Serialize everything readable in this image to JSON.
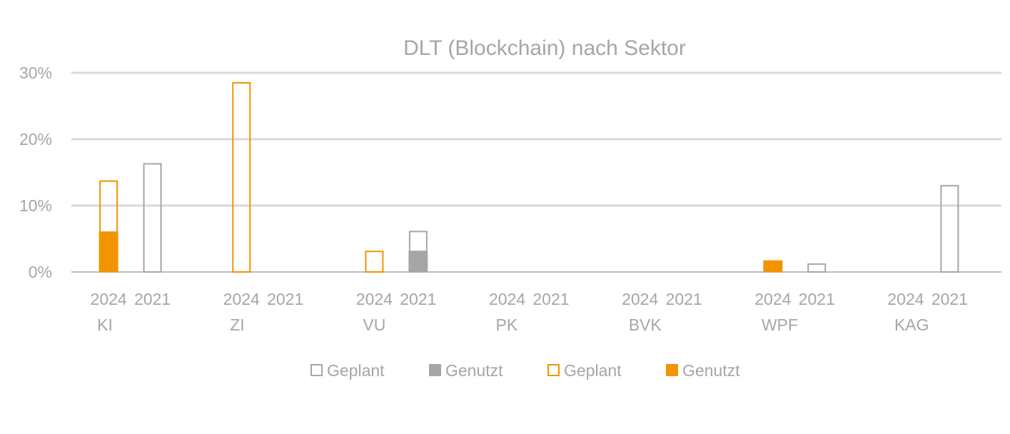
{
  "chart_data": {
    "type": "bar",
    "title": "DLT (Blockchain) nach Sektor",
    "xlabel": "",
    "ylabel": "",
    "ylim": [
      0,
      30
    ],
    "yticks": [
      "0%",
      "10%",
      "20%",
      "30%"
    ],
    "grid": true,
    "legend_position": "bottom",
    "categories": [
      "KI",
      "ZI",
      "VU",
      "PK",
      "BVK",
      "WPF",
      "KAG"
    ],
    "years": [
      "2024",
      "2021"
    ],
    "legend": [
      {
        "label": "Geplant",
        "color": "#a6a6a6",
        "style": "outline"
      },
      {
        "label": "Genutzt",
        "color": "#a6a6a6",
        "style": "filled"
      },
      {
        "label": "Geplant",
        "color": "#f29400",
        "style": "outline"
      },
      {
        "label": "Genutzt",
        "color": "#f29400",
        "style": "filled"
      }
    ],
    "series": [
      {
        "year": "2024",
        "type": "Genutzt",
        "color": "#f29400",
        "values": [
          6.0,
          0,
          0,
          0,
          0,
          1.7,
          0
        ]
      },
      {
        "year": "2024",
        "type": "Geplant",
        "color": "#f29400",
        "values": [
          7.8,
          28.6,
          3.2,
          0,
          0,
          0,
          0
        ]
      },
      {
        "year": "2021",
        "type": "Genutzt",
        "color": "#a6a6a6",
        "values": [
          0,
          0,
          3.1,
          0,
          0,
          0,
          0
        ]
      },
      {
        "year": "2021",
        "type": "Geplant",
        "color": "#a6a6a6",
        "values": [
          16.4,
          0,
          3.1,
          0,
          0,
          1.3,
          13.1
        ]
      }
    ]
  }
}
